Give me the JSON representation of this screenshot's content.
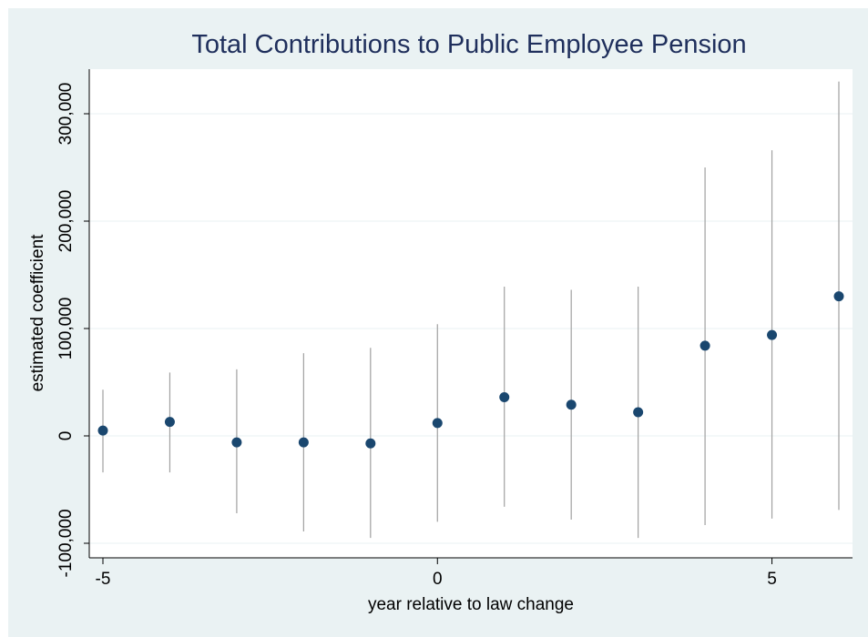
{
  "chart_data": {
    "type": "scatter",
    "title": "Total Contributions to Public Employee Pension",
    "xlabel": "year relative to law change",
    "ylabel": "estimated coefficient",
    "xlim": [
      -5,
      6
    ],
    "ylim": [
      -110000,
      340000
    ],
    "x_ticks": [
      -5,
      0,
      5
    ],
    "x_tick_labels": [
      "-5",
      "0",
      "5"
    ],
    "y_ticks": [
      -100000,
      0,
      100000,
      200000,
      300000
    ],
    "y_tick_labels": [
      "-100,000",
      "0",
      "100,000",
      "200,000",
      "300,000"
    ],
    "grid": true,
    "legend": "none",
    "colors": {
      "marker": "#1a476f",
      "ci": "#a0a0a0",
      "grid": "#eaf2f3",
      "plot_bg": "#ffffff",
      "panel_bg": "#eaf2f3",
      "title": "#1f2f5c"
    },
    "points": [
      {
        "x": -5,
        "y": 5000,
        "lo": -34000,
        "hi": 43000
      },
      {
        "x": -4,
        "y": 13000,
        "lo": -34000,
        "hi": 59000
      },
      {
        "x": -3,
        "y": -6000,
        "lo": -72000,
        "hi": 62000
      },
      {
        "x": -2,
        "y": -6000,
        "lo": -89000,
        "hi": 77000
      },
      {
        "x": -1,
        "y": -7000,
        "lo": -95000,
        "hi": 82000
      },
      {
        "x": 0,
        "y": 12000,
        "lo": -80000,
        "hi": 104000
      },
      {
        "x": 1,
        "y": 36000,
        "lo": -66000,
        "hi": 139000
      },
      {
        "x": 2,
        "y": 29000,
        "lo": -78000,
        "hi": 136000
      },
      {
        "x": 3,
        "y": 22000,
        "lo": -95000,
        "hi": 139000
      },
      {
        "x": 4,
        "y": 84000,
        "lo": -83000,
        "hi": 250000
      },
      {
        "x": 5,
        "y": 94000,
        "lo": -77000,
        "hi": 266000
      },
      {
        "x": 6,
        "y": 130000,
        "lo": -69000,
        "hi": 330000
      }
    ]
  }
}
